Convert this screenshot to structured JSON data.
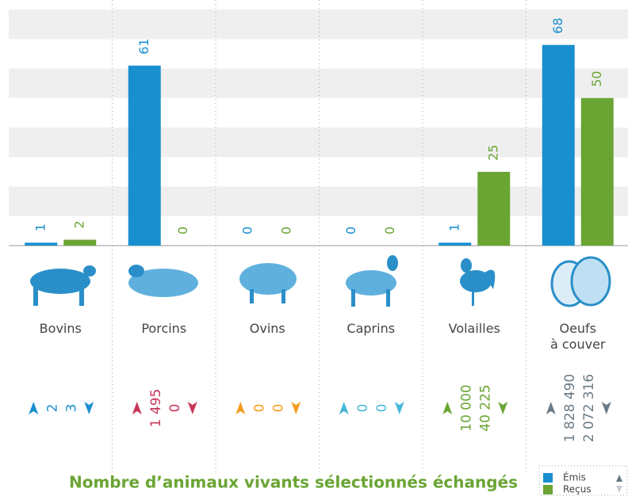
{
  "chart_data": {
    "type": "bar",
    "title": "Nombre d’animaux vivants sélectionnés échangés",
    "categories": [
      "Bovins",
      "Porcins",
      "Ovins",
      "Caprins",
      "Volailles",
      "Oeufs\nà couver"
    ],
    "series": [
      {
        "name": "Émis",
        "color": "#1a8fd0",
        "values": [
          1,
          61,
          0,
          0,
          1,
          68
        ]
      },
      {
        "name": "Reçus",
        "color": "#6aa534",
        "values": [
          2,
          0,
          0,
          0,
          25,
          50
        ]
      }
    ],
    "ylim": [
      0,
      80
    ],
    "yticks": [
      0,
      10,
      20,
      30,
      40,
      50,
      60,
      70,
      80
    ],
    "grid": "bands",
    "totals_emis": [
      2,
      1495,
      0,
      0,
      10000,
      1828490
    ],
    "totals_emis_labels": [
      "2",
      "1 495",
      "0",
      "0",
      "10 000",
      "1 828 490"
    ],
    "totals_recus": [
      3,
      0,
      0,
      0,
      40225,
      2072316
    ],
    "totals_recus_labels": [
      "3",
      "0",
      "0",
      "0",
      "40 225",
      "2 072 316"
    ],
    "totals_colors": [
      "#1a8fd0",
      "#c8365a",
      "#f39c1f",
      "#45b8d8",
      "#6aa534",
      "#6b7b85"
    ],
    "legend_position": "bottom-right"
  }
}
